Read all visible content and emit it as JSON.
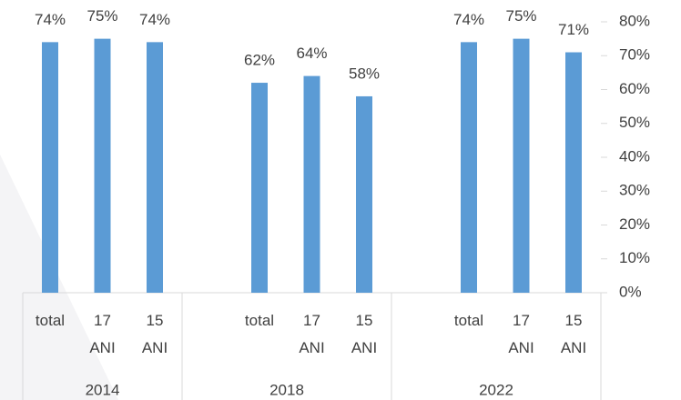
{
  "chart_data": {
    "type": "bar",
    "categories": [
      "total",
      "17 ANI",
      "15 ANI",
      "total",
      "17 ANI",
      "15 ANI",
      "total",
      "17 ANI",
      "15 ANI"
    ],
    "groups": [
      "2014",
      "2018",
      "2022"
    ],
    "values": [
      74,
      75,
      74,
      62,
      64,
      58,
      74,
      75,
      71
    ],
    "value_labels": [
      "74%",
      "75%",
      "74%",
      "62%",
      "64%",
      "58%",
      "74%",
      "75%",
      "71%"
    ],
    "color": "#5b9bd5",
    "ylim": [
      0,
      80
    ],
    "yticks": [
      {
        "value": 0,
        "label": "0%"
      },
      {
        "value": 10,
        "label": "10%"
      },
      {
        "value": 20,
        "label": "20%"
      },
      {
        "value": 30,
        "label": "30%"
      },
      {
        "value": 40,
        "label": "40%"
      },
      {
        "value": 50,
        "label": "50%"
      },
      {
        "value": 60,
        "label": "60%"
      },
      {
        "value": 70,
        "label": "70%"
      },
      {
        "value": 80,
        "label": "80%"
      }
    ]
  }
}
